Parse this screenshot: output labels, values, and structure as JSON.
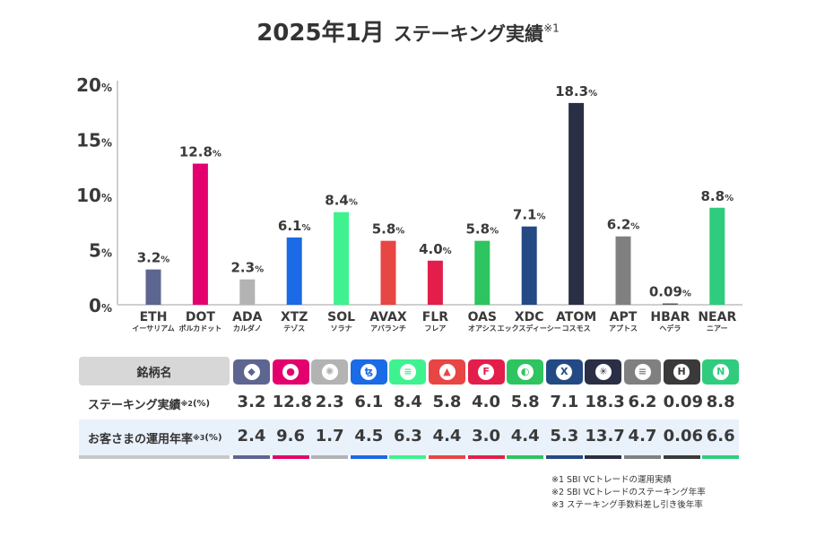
{
  "title": {
    "main": "2025年1月",
    "sub": "ステーキング実績",
    "mark": "※1"
  },
  "chart_data": {
    "type": "bar",
    "categories": [
      "ETH",
      "DOT",
      "ADA",
      "XTZ",
      "SOL",
      "AVAX",
      "FLR",
      "OAS",
      "XDC",
      "ATOM",
      "APT",
      "HBAR",
      "NEAR"
    ],
    "subcategories": [
      "イーサリアム",
      "ポルカドット",
      "カルダノ",
      "テゾス",
      "ソラナ",
      "アバランチ",
      "フレア",
      "オアシス",
      "エックスディーシー",
      "コスモス",
      "アプトス",
      "ヘデラ",
      "ニアー"
    ],
    "values": [
      3.2,
      12.8,
      2.3,
      6.1,
      8.4,
      5.8,
      4.0,
      5.8,
      7.1,
      18.3,
      6.2,
      0.09,
      8.8
    ],
    "value_labels": [
      "3.2",
      "12.8",
      "2.3",
      "6.1",
      "8.4",
      "5.8",
      "4.0",
      "5.8",
      "7.1",
      "18.3",
      "6.2",
      "0.09",
      "8.8"
    ],
    "unit": "%",
    "ylim": [
      0,
      20
    ],
    "yticks": [
      "0",
      "5",
      "10",
      "15",
      "20"
    ],
    "colors": [
      "#5d6591",
      "#e3006e",
      "#b3b3b3",
      "#1b6ae6",
      "#3ef28f",
      "#e84545",
      "#e31e4b",
      "#2ec45f",
      "#244a85",
      "#2b2f45",
      "#808080",
      "#585858",
      "#2fcc7d"
    ],
    "legend": "none",
    "grid": false
  },
  "table": {
    "header_label": "銘柄名",
    "row1_label": "ステーキング実績",
    "row1_mark": "※2",
    "row1_unit": "(%)",
    "row1_values": [
      "3.2",
      "12.8",
      "2.3",
      "6.1",
      "8.4",
      "5.8",
      "4.0",
      "5.8",
      "7.1",
      "18.3",
      "6.2",
      "0.09",
      "8.8"
    ],
    "row2_label": "お客さまの運用年率",
    "row2_mark": "※3",
    "row2_unit": "(%)",
    "row2_values": [
      "2.4",
      "9.6",
      "1.7",
      "4.5",
      "6.3",
      "4.4",
      "3.0",
      "4.4",
      "5.3",
      "13.7",
      "4.7",
      "0.06",
      "6.6"
    ],
    "header_colors": [
      "#5d6591",
      "#e3006e",
      "#b3b3b3",
      "#1b6ae6",
      "#3ef28f",
      "#e84545",
      "#e31e4b",
      "#2ec45f",
      "#244a85",
      "#2b2f45",
      "#808080",
      "#3a3a3a",
      "#2fcc7d"
    ],
    "icons": [
      "eth-icon",
      "dot-icon",
      "ada-icon",
      "xtz-icon",
      "sol-icon",
      "avax-icon",
      "flr-icon",
      "oas-icon",
      "xdc-icon",
      "atom-icon",
      "apt-icon",
      "hbar-icon",
      "near-icon"
    ],
    "icon_glyphs": [
      "◆",
      "●",
      "✺",
      "ꜩ",
      "≡",
      "▲",
      "F",
      "◐",
      "X",
      "✳",
      "≡",
      "H",
      "N"
    ]
  },
  "notes": [
    "※1  SBI VCトレードの運用実績",
    "※2  SBI VCトレードのステーキング年率",
    "※3  ステーキング手数料差し引き後年率"
  ]
}
